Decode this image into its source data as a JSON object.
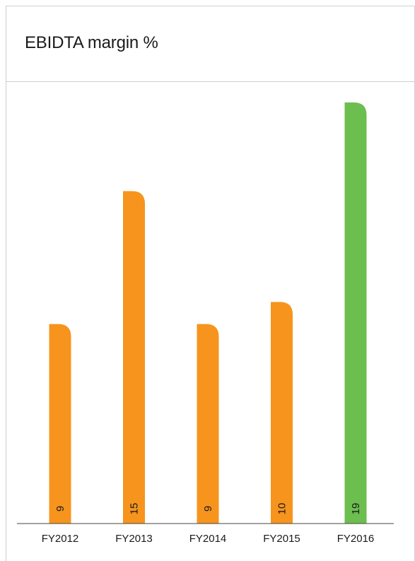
{
  "chart_data": {
    "type": "bar",
    "title": "EBIDTA margin %",
    "categories": [
      "FY2012",
      "FY2013",
      "FY2014",
      "FY2015",
      "FY2016"
    ],
    "values": [
      9,
      15,
      9,
      10,
      19
    ],
    "ylim": [
      0,
      19
    ],
    "grid": false,
    "legend": "none",
    "colors": [
      "#F7941D",
      "#F7941D",
      "#F7941D",
      "#F7941D",
      "#6CBE4F"
    ]
  }
}
